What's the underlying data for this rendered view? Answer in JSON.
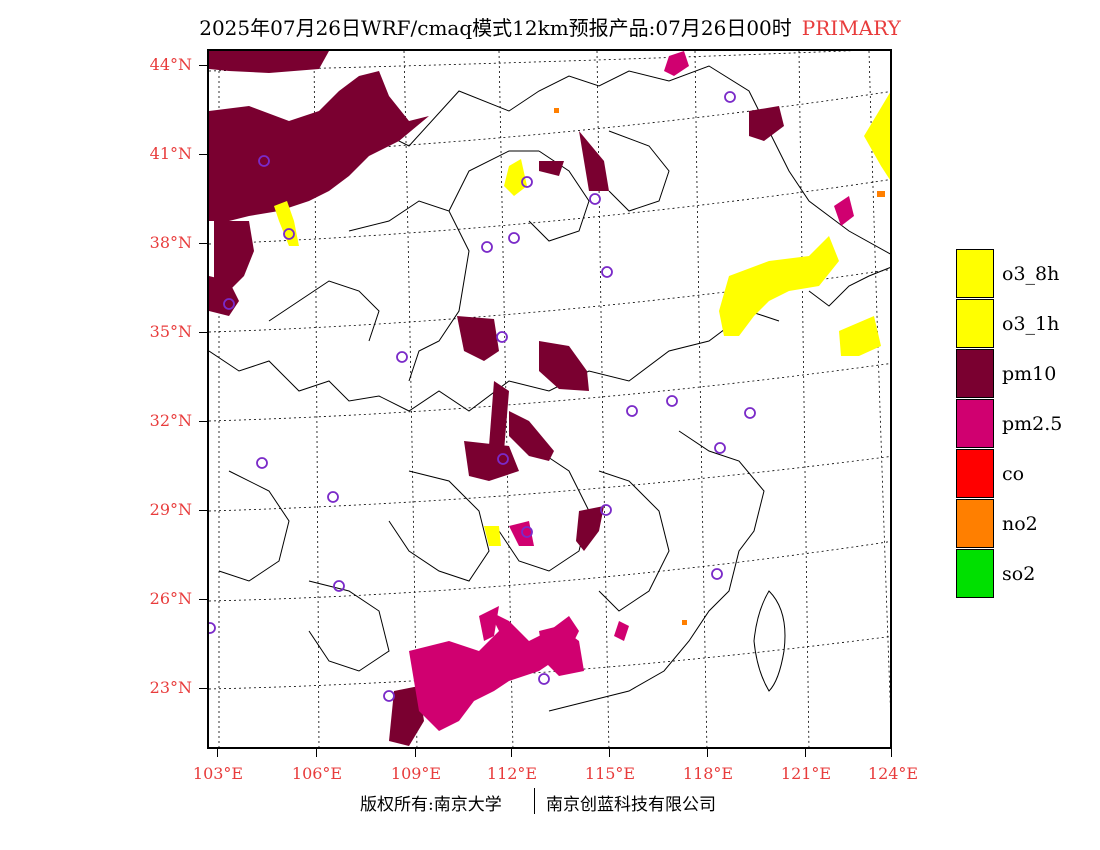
{
  "title": {
    "text": "2025年07月26日WRF/cmaq模式12km预报产品:07月26日00时",
    "tag": "PRIMARY"
  },
  "axes": {
    "lat_labels": [
      "44°N",
      "41°N",
      "38°N",
      "35°N",
      "32°N",
      "29°N",
      "26°N",
      "23°N"
    ],
    "lon_labels": [
      "103°E",
      "106°E",
      "109°E",
      "112°E",
      "115°E",
      "118°E",
      "121°E",
      "124°E"
    ]
  },
  "legend": [
    {
      "label": "o3_8h",
      "color": "#ffff00"
    },
    {
      "label": "o3_1h",
      "color": "#ffff00"
    },
    {
      "label": "pm10",
      "color": "#7a0030"
    },
    {
      "label": "pm2.5",
      "color": "#d00070"
    },
    {
      "label": "co",
      "color": "#ff0000"
    },
    {
      "label": "no2",
      "color": "#ff7f00"
    },
    {
      "label": "so2",
      "color": "#00e000"
    }
  ],
  "footer": {
    "copyright": "版权所有:南京大学",
    "company": "南京创蓝科技有限公司"
  },
  "colors": {
    "label_red": "#e83c3c",
    "station_marker": "#7a2ac8"
  }
}
